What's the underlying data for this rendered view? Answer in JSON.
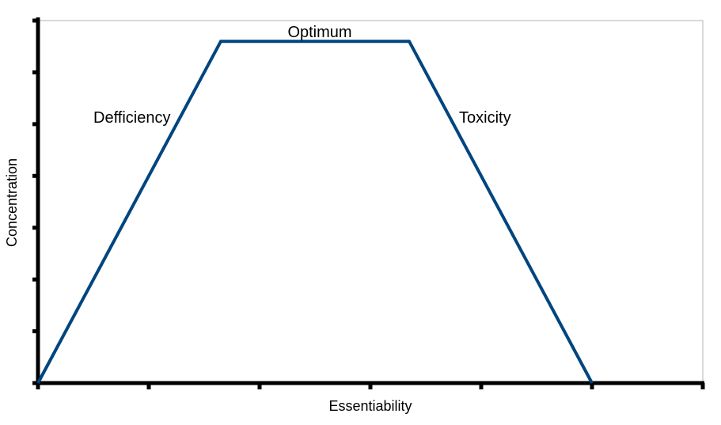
{
  "chart_data": {
    "type": "line",
    "title": "",
    "xlabel": "Essentiability",
    "ylabel": "Concentration",
    "xlim": [
      0,
      6
    ],
    "ylim": [
      0,
      7
    ],
    "x_ticks": [
      0,
      1,
      2,
      3,
      4,
      5,
      6
    ],
    "y_ticks": [
      0,
      1,
      2,
      3,
      4,
      5,
      6,
      7
    ],
    "tick_labels_shown": false,
    "grid": false,
    "legend": "none",
    "series": [
      {
        "color": "#00457f",
        "x": [
          0,
          1.65,
          3.35,
          5.0
        ],
        "y": [
          0,
          6.6,
          6.6,
          0
        ]
      }
    ],
    "annotations": [
      {
        "id": "optimum",
        "text": "Optimum"
      },
      {
        "id": "deficiency",
        "text": "Defficiency"
      },
      {
        "id": "toxicity",
        "text": "Toxicity"
      }
    ]
  }
}
